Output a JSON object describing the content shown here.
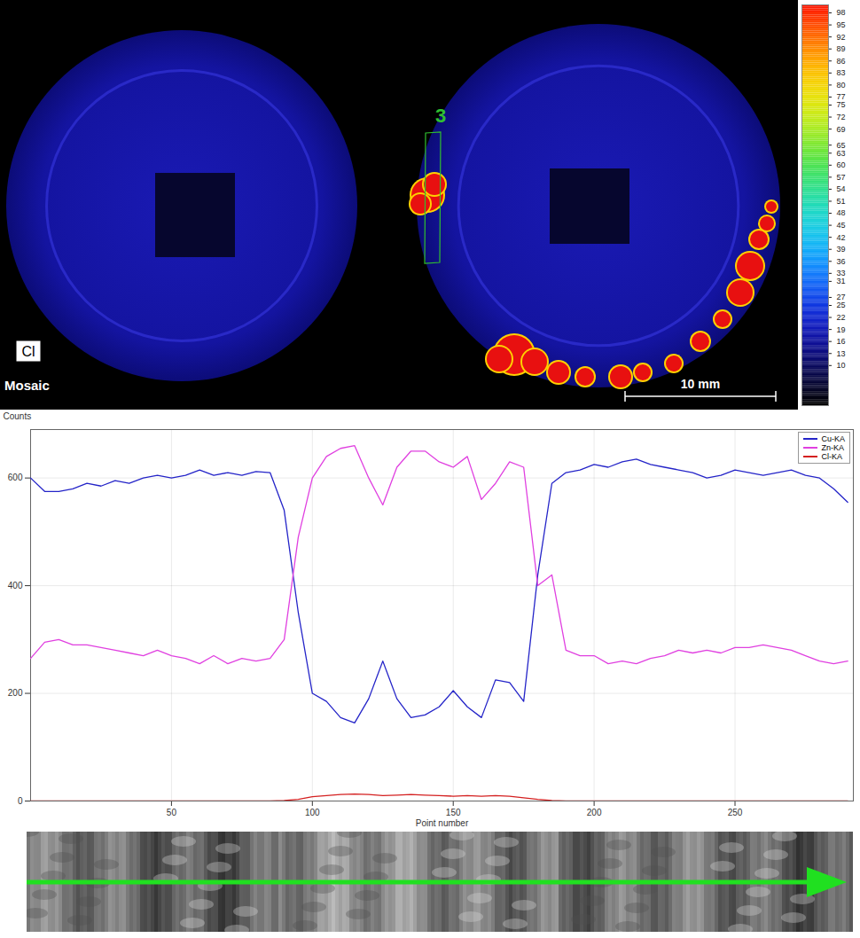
{
  "map": {
    "label": "Cl",
    "caption": "Mosaic",
    "scale_bar": "10 mm",
    "profile_label": "3",
    "colorbar": {
      "range": [
        0,
        100
      ],
      "ticks": [
        98,
        95,
        92,
        89,
        86,
        83,
        80,
        77,
        75,
        72,
        69,
        65,
        63,
        60,
        57,
        54,
        51,
        48,
        45,
        42,
        39,
        36,
        33,
        31,
        27,
        25,
        22,
        19,
        16,
        13,
        10
      ]
    }
  },
  "chart_data": {
    "type": "line",
    "ylabel": "Counts",
    "xlabel": "Point number",
    "x": [
      0,
      5,
      10,
      15,
      20,
      25,
      30,
      35,
      40,
      45,
      50,
      55,
      60,
      65,
      70,
      75,
      80,
      85,
      90,
      95,
      100,
      105,
      110,
      115,
      120,
      125,
      130,
      135,
      140,
      145,
      150,
      155,
      160,
      165,
      170,
      175,
      180,
      185,
      190,
      195,
      200,
      205,
      210,
      215,
      220,
      225,
      230,
      235,
      240,
      245,
      250,
      255,
      260,
      265,
      270,
      275,
      280,
      285,
      290
    ],
    "series": [
      {
        "name": "Cu-KA",
        "color": "#2424c8",
        "values": [
          600,
          575,
          575,
          580,
          590,
          585,
          595,
          590,
          600,
          605,
          600,
          605,
          615,
          605,
          610,
          605,
          612,
          610,
          540,
          350,
          200,
          185,
          155,
          145,
          190,
          260,
          190,
          155,
          160,
          175,
          205,
          175,
          155,
          225,
          220,
          185,
          420,
          590,
          610,
          615,
          625,
          620,
          630,
          635,
          625,
          620,
          615,
          610,
          600,
          605,
          615,
          610,
          605,
          610,
          615,
          605,
          600,
          580,
          555
        ]
      },
      {
        "name": "Zn-KA",
        "color": "#e040e0",
        "values": [
          265,
          295,
          300,
          290,
          290,
          285,
          280,
          275,
          270,
          280,
          270,
          265,
          255,
          270,
          255,
          265,
          260,
          265,
          300,
          490,
          600,
          640,
          655,
          660,
          600,
          550,
          620,
          650,
          650,
          630,
          620,
          640,
          560,
          590,
          630,
          620,
          400,
          420,
          280,
          270,
          270,
          255,
          260,
          255,
          265,
          270,
          280,
          275,
          280,
          275,
          285,
          285,
          290,
          285,
          280,
          270,
          260,
          255,
          260
        ]
      },
      {
        "name": "Cl-KA",
        "color": "#d42020",
        "values": [
          0,
          0,
          0,
          0,
          0,
          0,
          0,
          0,
          0,
          0,
          0,
          0,
          0,
          0,
          0,
          0,
          0,
          0,
          1,
          3,
          8,
          10,
          12,
          13,
          12,
          10,
          11,
          12,
          11,
          10,
          9,
          10,
          9,
          10,
          9,
          6,
          3,
          1,
          0,
          0,
          0,
          0,
          0,
          0,
          0,
          0,
          0,
          0,
          0,
          0,
          0,
          0,
          0,
          0,
          0,
          0,
          0,
          0,
          0
        ]
      }
    ],
    "xlim": [
      0,
      292
    ],
    "ylim": [
      0,
      690
    ],
    "xticks": [
      50,
      100,
      150,
      200,
      250
    ],
    "yticks": [
      0,
      200,
      400,
      600
    ],
    "grid": true,
    "legend": "top-right"
  }
}
